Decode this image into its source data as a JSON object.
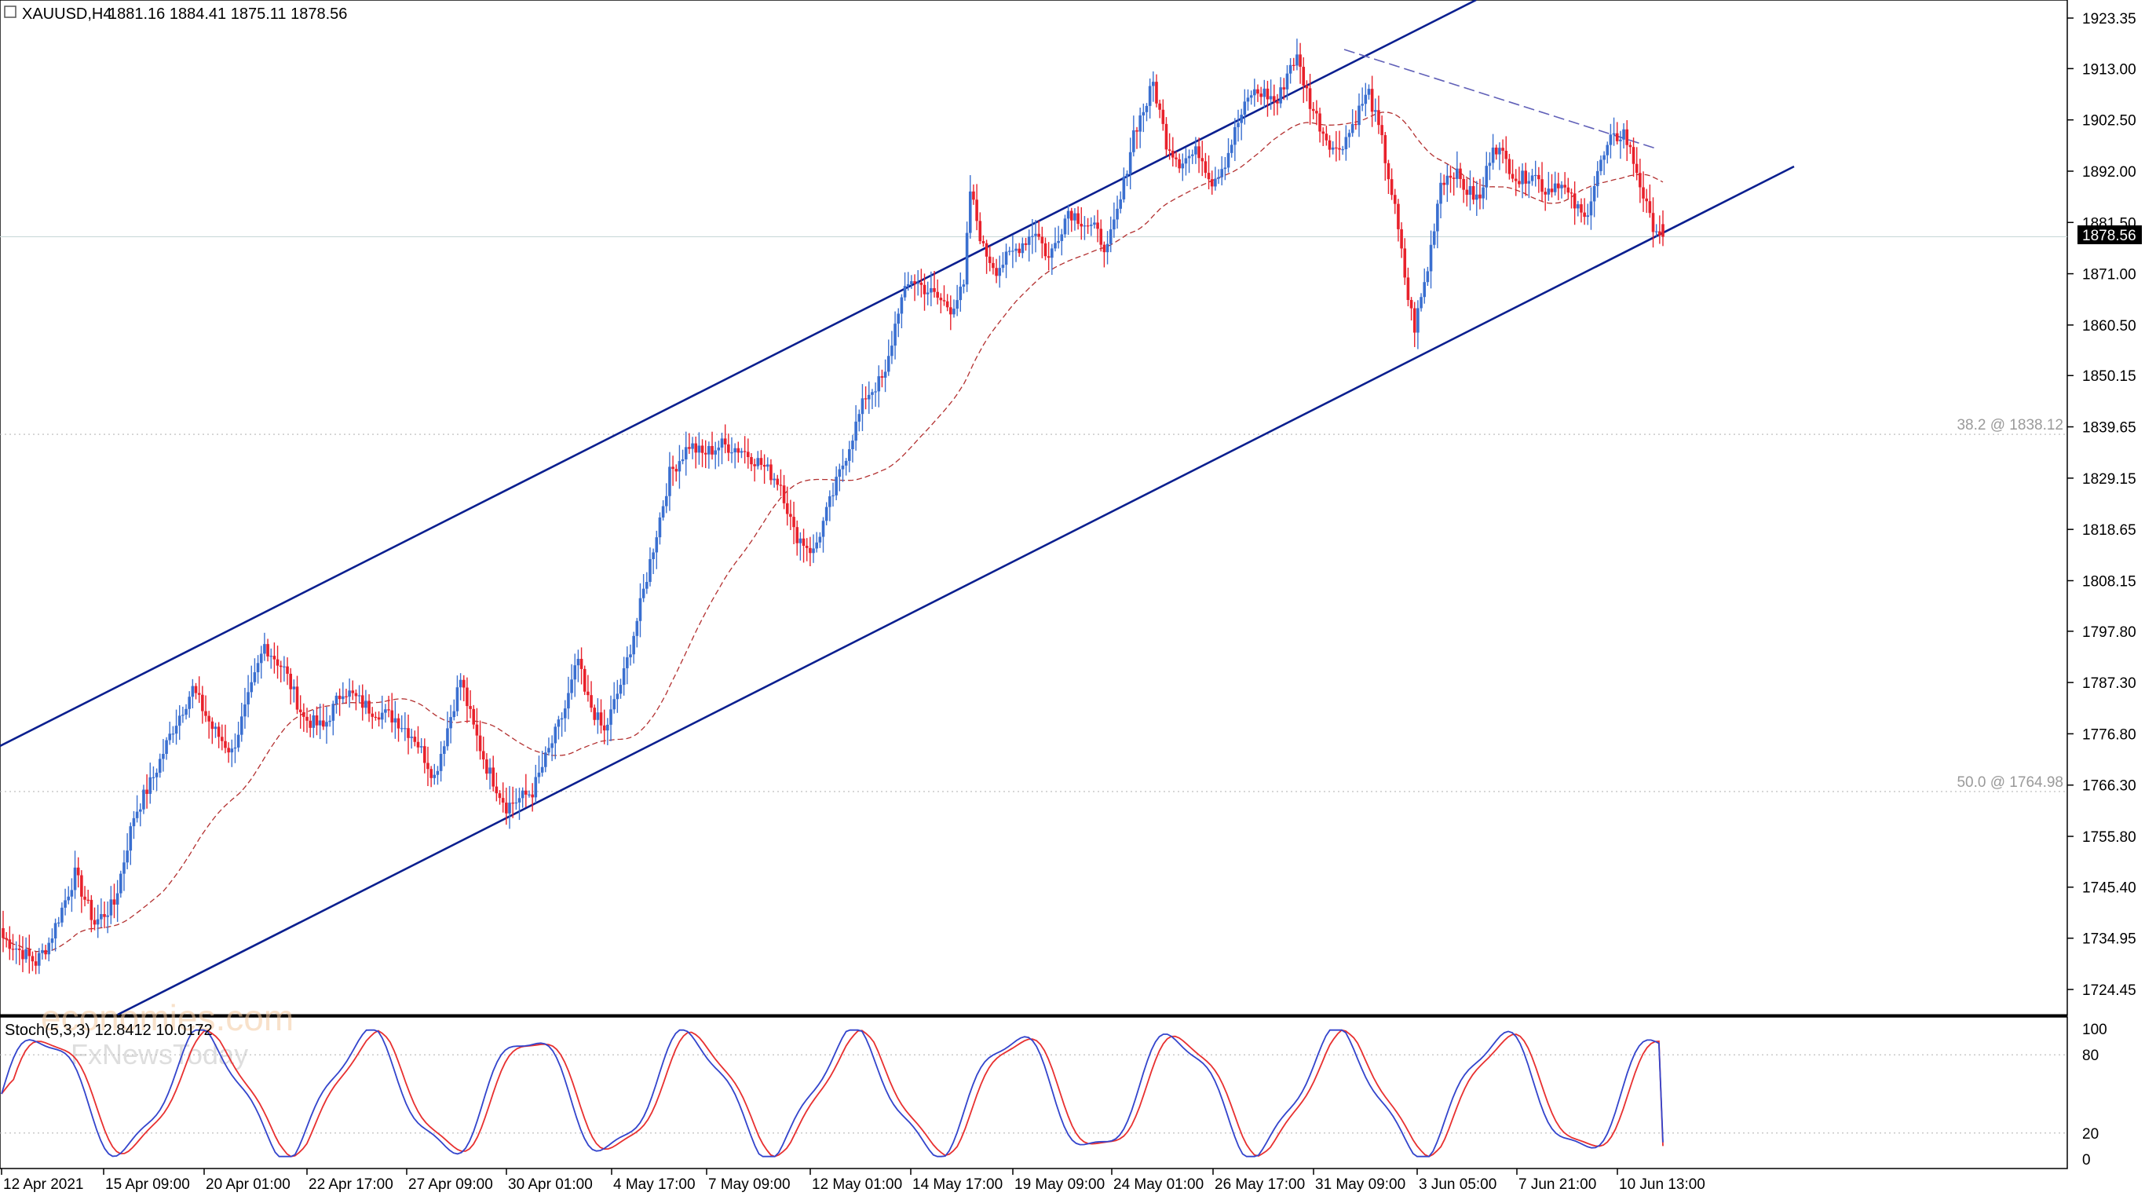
{
  "header": {
    "symbol": "XAUUSD,H4",
    "ohlc": "1881.16 1884.41 1875.11 1878.56"
  },
  "price_axis": {
    "ticks": [
      "1923.35",
      "1913.00",
      "1902.50",
      "1892.00",
      "1881.50",
      "1871.00",
      "1860.50",
      "1850.15",
      "1839.65",
      "1829.15",
      "1818.65",
      "1808.15",
      "1797.80",
      "1787.30",
      "1776.80",
      "1766.30",
      "1755.80",
      "1745.40",
      "1734.95",
      "1724.45"
    ],
    "current_price": "1878.56"
  },
  "fib_levels": [
    {
      "label": "38.2 @ 1838.12",
      "price": 1838.12
    },
    {
      "label": "50.0 @ 1764.98",
      "price": 1764.98
    }
  ],
  "time_axis": {
    "labels": [
      "12 Apr 2021",
      "15 Apr 09:00",
      "20 Apr 01:00",
      "22 Apr 17:00",
      "27 Apr 09:00",
      "30 Apr 01:00",
      "4 May 17:00",
      "7 May 09:00",
      "12 May 01:00",
      "14 May 17:00",
      "19 May 09:00",
      "24 May 01:00",
      "26 May 17:00",
      "31 May 09:00",
      "3 Jun 05:00",
      "7 Jun 21:00",
      "10 Jun 13:00"
    ]
  },
  "stochastic": {
    "label": "Stoch(5,3,3) 12.8412 10.0172",
    "levels": [
      "100",
      "80",
      "20",
      "0"
    ]
  },
  "watermark": {
    "brand": "economies.com",
    "brand2": "FxNewsToday"
  },
  "colors": {
    "bull": "#3a6fd0",
    "bear": "#e8212b",
    "channel": "#0a1f8f",
    "ma": "#b33030",
    "stoch_main": "#3344cc",
    "stoch_signal": "#e83030"
  },
  "chart_data": {
    "type": "candlestick",
    "symbol": "XAUUSD",
    "timeframe": "H4",
    "title": "XAUUSD,H4",
    "ylim": [
      1719,
      1929
    ],
    "ohlc_key_points": [
      {
        "time": "12 Apr 2021",
        "close": 1734
      },
      {
        "time": "15 Apr 09:00",
        "close": 1766
      },
      {
        "time": "20 Apr 01:00",
        "close": 1778
      },
      {
        "time": "22 Apr 17:00",
        "close": 1782
      },
      {
        "time": "27 Apr 09:00",
        "close": 1775
      },
      {
        "time": "30 Apr 01:00",
        "close": 1768
      },
      {
        "time": "4 May 17:00",
        "close": 1780
      },
      {
        "time": "7 May 09:00",
        "close": 1836
      },
      {
        "time": "12 May 01:00",
        "close": 1820
      },
      {
        "time": "14 May 17:00",
        "close": 1844
      },
      {
        "time": "19 May 09:00",
        "close": 1869
      },
      {
        "time": "24 May 01:00",
        "close": 1881
      },
      {
        "time": "26 May 17:00",
        "close": 1900
      },
      {
        "time": "31 May 09:00",
        "close": 1906
      },
      {
        "time": "3 Jun 05:00",
        "close": 1866
      },
      {
        "time": "7 Jun 21:00",
        "close": 1890
      },
      {
        "time": "10 Jun 13:00",
        "close": 1878.56
      }
    ],
    "last_bar": {
      "open": 1881.16,
      "high": 1884.41,
      "low": 1875.11,
      "close": 1878.56
    },
    "moving_average": "dashed red line trailing price",
    "channel": "ascending blue parallel channel",
    "fib_retracements": [
      {
        "level": "38.2",
        "price": 1838.12
      },
      {
        "level": "50.0",
        "price": 1764.98
      }
    ],
    "stochastic": {
      "params": "5,3,3",
      "main": 12.8412,
      "signal": 10.0172,
      "levels": [
        100,
        80,
        20,
        0
      ]
    }
  }
}
